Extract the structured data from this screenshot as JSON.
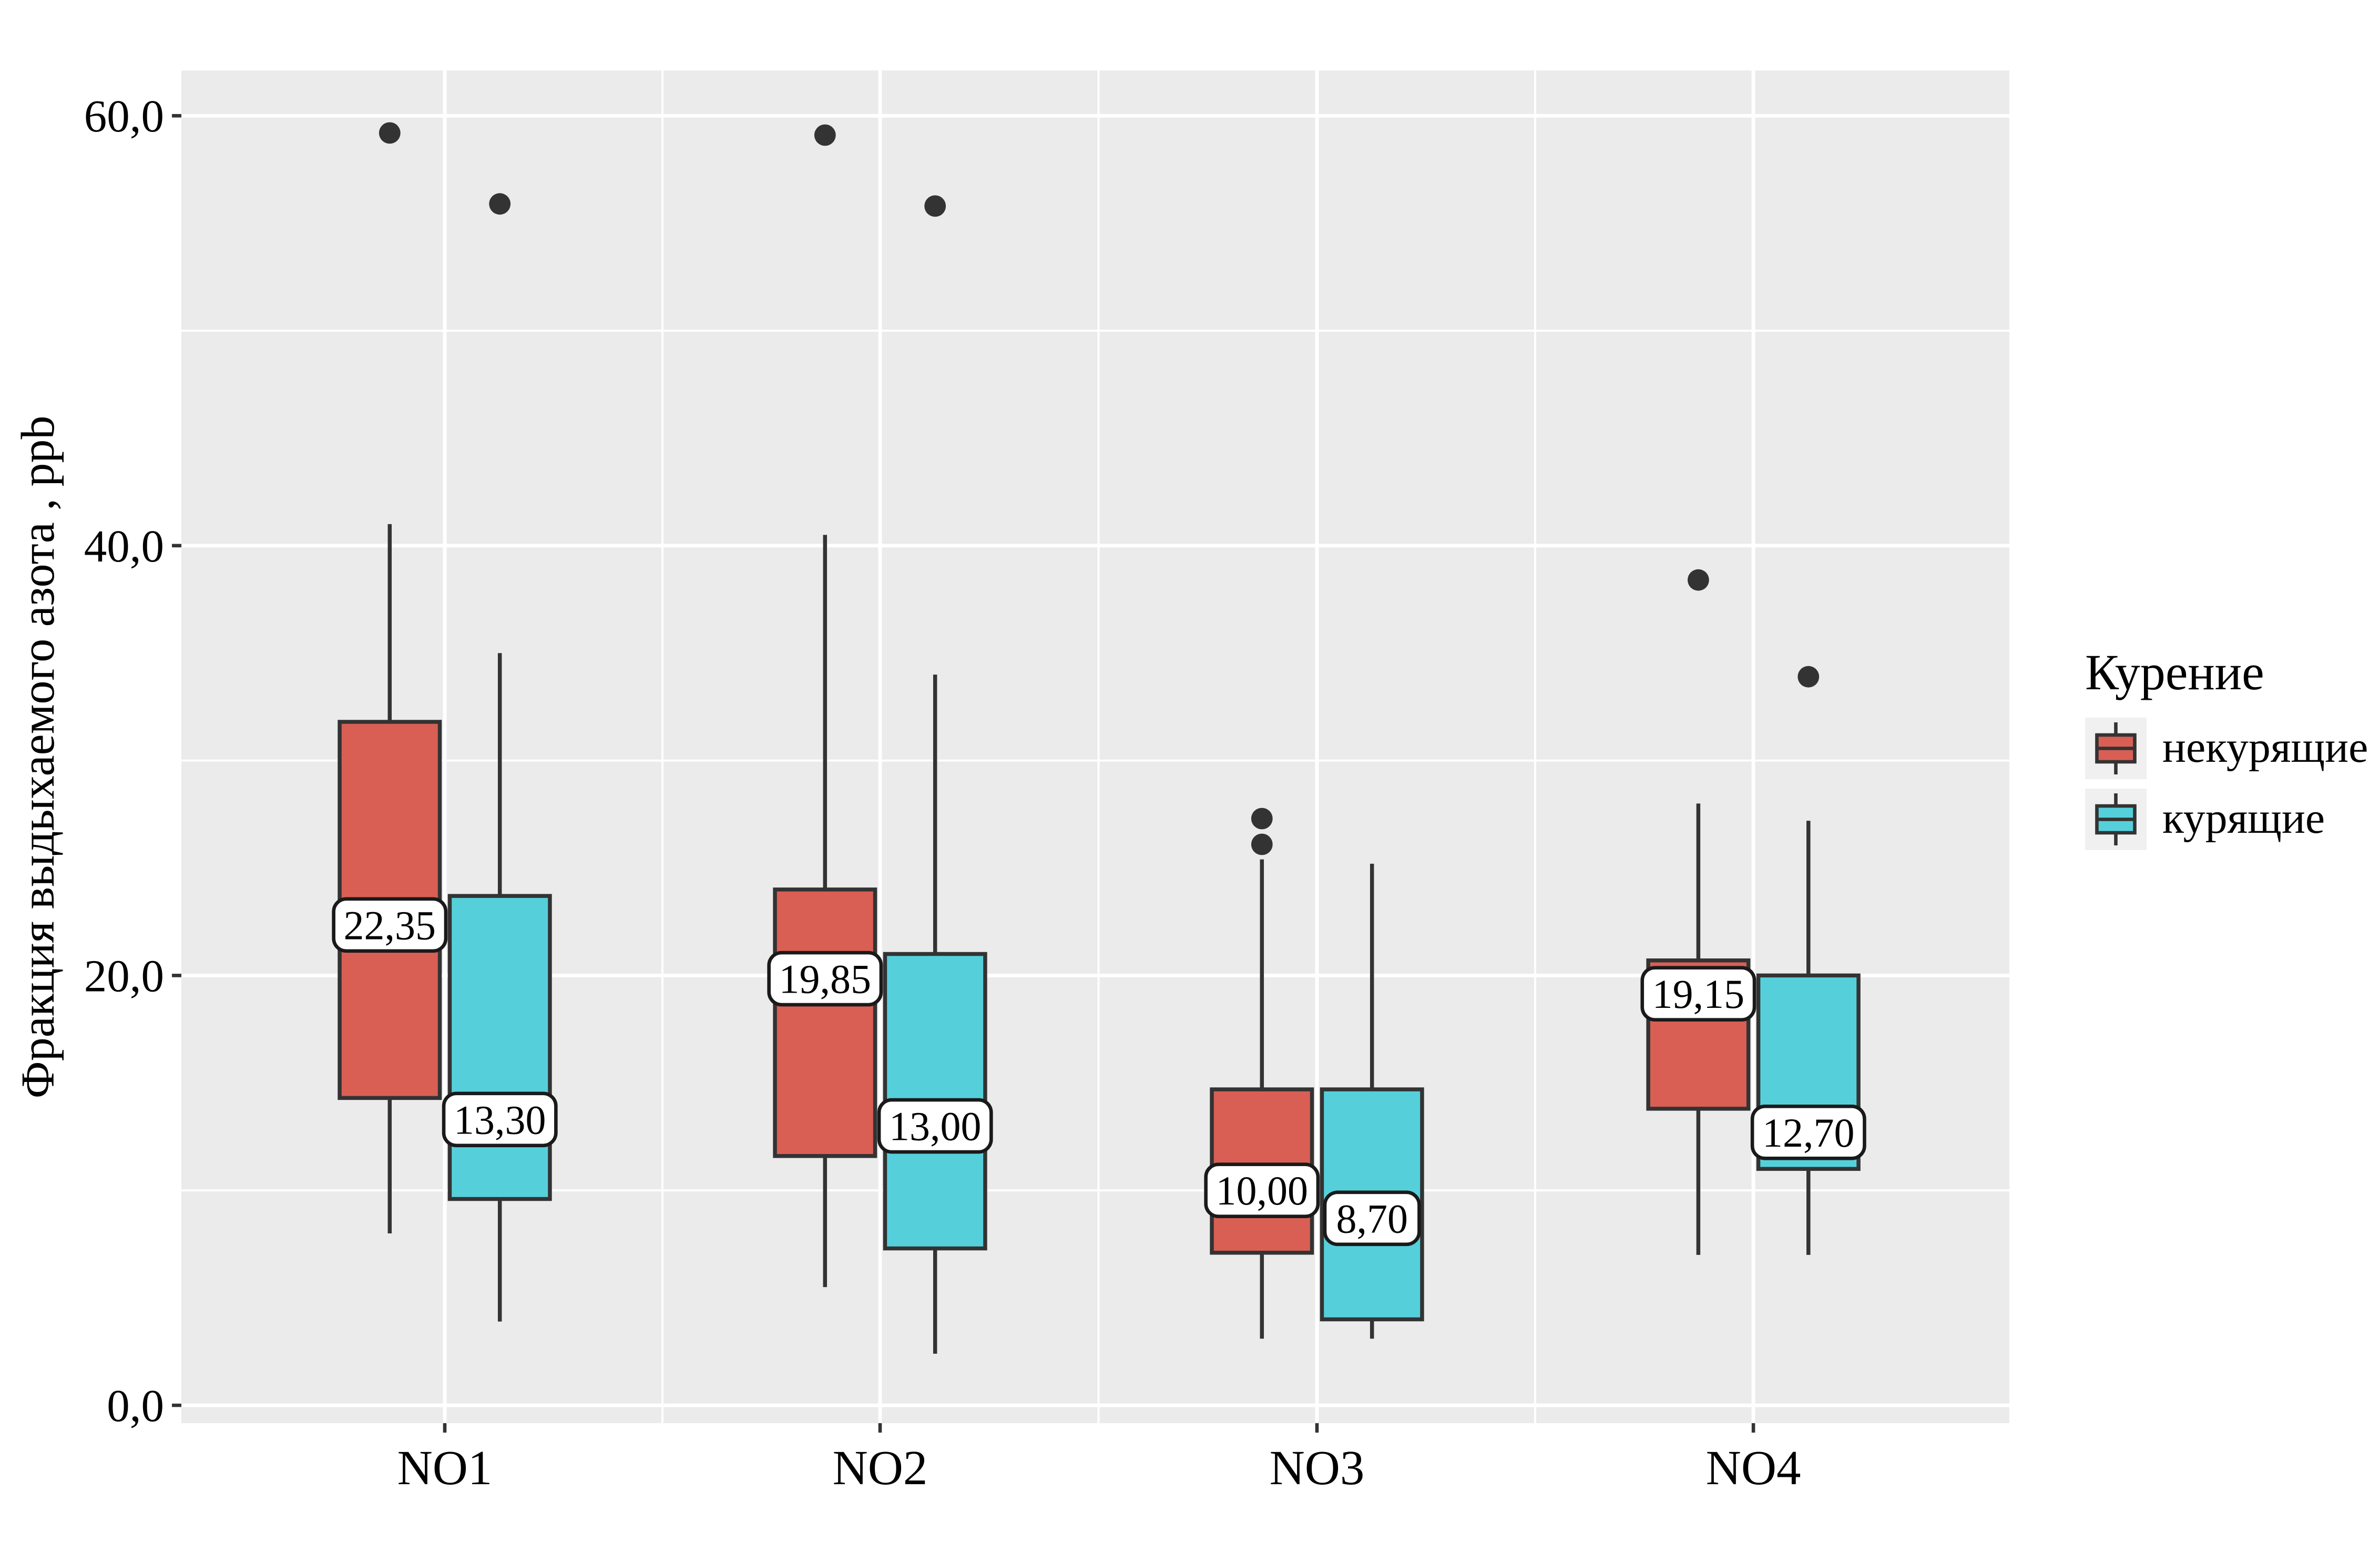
{
  "figure": {
    "background": "#FFFFFF"
  },
  "legend": {
    "title": "Курение",
    "items": [
      {
        "label": "некурящие",
        "color": "#D95F55"
      },
      {
        "label": "курящие",
        "color": "#55D0DB"
      }
    ]
  },
  "chart_data": {
    "type": "boxplot",
    "title": "",
    "xlabel": "",
    "ylabel": "Фракция выдыхаемого азота , ppb",
    "categories": [
      "NO1",
      "NO2",
      "NO3",
      "NO4"
    ],
    "y_axis": {
      "tick_values": [
        0,
        20,
        40,
        60
      ],
      "tick_labels": [
        "0,0",
        "20,0",
        "40,0",
        "60,0"
      ],
      "minor_tick_values": [
        10,
        30,
        50
      ],
      "ylim": [
        -0.8,
        62.1
      ],
      "grid": "on",
      "decimal_separator": ","
    },
    "legend_position": "right",
    "series": [
      {
        "name": "некурящие",
        "color": "#D95F55",
        "boxes": [
          {
            "category": "NO1",
            "whisker_low": 8.0,
            "q1": 14.3,
            "median": 22.35,
            "median_label": "22,35",
            "q3": 31.8,
            "whisker_high": 41.0,
            "outliers": [
              59.2
            ]
          },
          {
            "category": "NO2",
            "whisker_low": 5.5,
            "q1": 11.6,
            "median": 19.85,
            "median_label": "19,85",
            "q3": 24.0,
            "whisker_high": 40.5,
            "outliers": [
              59.1
            ]
          },
          {
            "category": "NO3",
            "whisker_low": 3.1,
            "q1": 7.1,
            "median": 10.0,
            "median_label": "10,00",
            "q3": 14.7,
            "whisker_high": 25.4,
            "outliers": [
              27.3,
              26.1
            ]
          },
          {
            "category": "NO4",
            "whisker_low": 7.0,
            "q1": 13.8,
            "median": 19.15,
            "median_label": "19,15",
            "q3": 20.7,
            "whisker_high": 28.0,
            "outliers": [
              38.4
            ]
          }
        ]
      },
      {
        "name": "курящие",
        "color": "#55D0DB",
        "boxes": [
          {
            "category": "NO1",
            "whisker_low": 3.9,
            "q1": 9.6,
            "median": 13.3,
            "median_label": "13,30",
            "q3": 23.7,
            "whisker_high": 35.0,
            "outliers": [
              55.9
            ]
          },
          {
            "category": "NO2",
            "whisker_low": 2.4,
            "q1": 7.3,
            "median": 13.0,
            "median_label": "13,00",
            "q3": 21.0,
            "whisker_high": 34.0,
            "outliers": [
              55.8
            ]
          },
          {
            "category": "NO3",
            "whisker_low": 3.1,
            "q1": 4.0,
            "median": 8.7,
            "median_label": "8,70",
            "q3": 14.7,
            "whisker_high": 25.2,
            "outliers": []
          },
          {
            "category": "NO4",
            "whisker_low": 7.0,
            "q1": 11.0,
            "median": 12.7,
            "median_label": "12,70",
            "q3": 20.0,
            "whisker_high": 27.2,
            "outliers": [
              33.9
            ]
          }
        ]
      }
    ],
    "style": {
      "panel_bg": "#EBEBEB",
      "grid_color": "#FFFFFF",
      "stroke": "#333333",
      "outlier_color": "#333333",
      "label_bg": "#FFFFFF",
      "label_border": "#1A1A1A",
      "tick_color": "#333333"
    }
  }
}
